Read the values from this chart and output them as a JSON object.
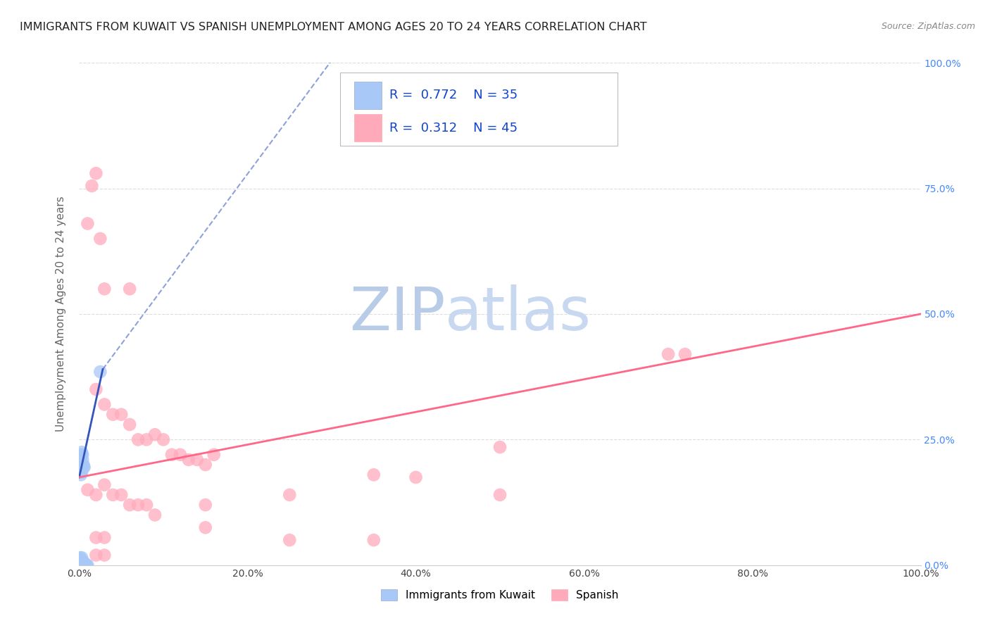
{
  "title": "IMMIGRANTS FROM KUWAIT VS SPANISH UNEMPLOYMENT AMONG AGES 20 TO 24 YEARS CORRELATION CHART",
  "source": "Source: ZipAtlas.com",
  "ylabel": "Unemployment Among Ages 20 to 24 years",
  "xlim": [
    0,
    1.0
  ],
  "ylim": [
    0,
    1.0
  ],
  "xtick_labels": [
    "0.0%",
    "20.0%",
    "40.0%",
    "60.0%",
    "80.0%",
    "100.0%"
  ],
  "xtick_vals": [
    0.0,
    0.2,
    0.4,
    0.6,
    0.8,
    1.0
  ],
  "ytick_labels": [
    "0.0%",
    "25.0%",
    "50.0%",
    "75.0%",
    "100.0%"
  ],
  "ytick_vals": [
    0.0,
    0.25,
    0.5,
    0.75,
    1.0
  ],
  "legend1_label": "Immigrants from Kuwait",
  "legend2_label": "Spanish",
  "R1": "0.772",
  "N1": "35",
  "R2": "0.312",
  "N2": "45",
  "color_kuwait": "#a8c8f8",
  "color_spanish": "#ffaabb",
  "line_color_kuwait": "#3355bb",
  "line_color_spanish": "#ff6688",
  "watermark_zip": "ZIP",
  "watermark_atlas": "atlas",
  "kuwait_points": [
    [
      0.002,
      0.195
    ],
    [
      0.002,
      0.18
    ],
    [
      0.003,
      0.185
    ],
    [
      0.003,
      0.22
    ],
    [
      0.003,
      0.225
    ],
    [
      0.004,
      0.21
    ],
    [
      0.004,
      0.195
    ],
    [
      0.004,
      0.22
    ],
    [
      0.005,
      0.2
    ],
    [
      0.005,
      0.195
    ],
    [
      0.006,
      0.195
    ],
    [
      0.025,
      0.385
    ],
    [
      0.001,
      0.01
    ],
    [
      0.001,
      0.005
    ],
    [
      0.001,
      0.0
    ],
    [
      0.001,
      0.015
    ],
    [
      0.002,
      0.01
    ],
    [
      0.002,
      0.005
    ],
    [
      0.002,
      0.0
    ],
    [
      0.003,
      0.01
    ],
    [
      0.003,
      0.005
    ],
    [
      0.003,
      0.015
    ],
    [
      0.003,
      0.0
    ],
    [
      0.004,
      0.005
    ],
    [
      0.004,
      0.0
    ],
    [
      0.005,
      0.005
    ],
    [
      0.006,
      0.005
    ],
    [
      0.006,
      0.0
    ],
    [
      0.007,
      0.0
    ],
    [
      0.008,
      0.0
    ],
    [
      0.009,
      0.0
    ],
    [
      0.01,
      0.0
    ],
    [
      0.001,
      0.005
    ],
    [
      0.0005,
      0.005
    ],
    [
      0.0005,
      0.0
    ]
  ],
  "spanish_points": [
    [
      0.01,
      0.68
    ],
    [
      0.015,
      0.755
    ],
    [
      0.02,
      0.78
    ],
    [
      0.025,
      0.65
    ],
    [
      0.03,
      0.55
    ],
    [
      0.06,
      0.55
    ],
    [
      0.02,
      0.35
    ],
    [
      0.03,
      0.32
    ],
    [
      0.04,
      0.3
    ],
    [
      0.05,
      0.3
    ],
    [
      0.06,
      0.28
    ],
    [
      0.07,
      0.25
    ],
    [
      0.08,
      0.25
    ],
    [
      0.09,
      0.26
    ],
    [
      0.1,
      0.25
    ],
    [
      0.11,
      0.22
    ],
    [
      0.12,
      0.22
    ],
    [
      0.13,
      0.21
    ],
    [
      0.14,
      0.21
    ],
    [
      0.15,
      0.2
    ],
    [
      0.16,
      0.22
    ],
    [
      0.01,
      0.15
    ],
    [
      0.02,
      0.14
    ],
    [
      0.03,
      0.16
    ],
    [
      0.04,
      0.14
    ],
    [
      0.05,
      0.14
    ],
    [
      0.06,
      0.12
    ],
    [
      0.07,
      0.12
    ],
    [
      0.08,
      0.12
    ],
    [
      0.09,
      0.1
    ],
    [
      0.15,
      0.12
    ],
    [
      0.25,
      0.14
    ],
    [
      0.15,
      0.075
    ],
    [
      0.25,
      0.05
    ],
    [
      0.35,
      0.05
    ],
    [
      0.4,
      0.175
    ],
    [
      0.5,
      0.235
    ],
    [
      0.5,
      0.14
    ],
    [
      0.7,
      0.42
    ],
    [
      0.72,
      0.42
    ],
    [
      0.02,
      0.055
    ],
    [
      0.03,
      0.055
    ],
    [
      0.02,
      0.02
    ],
    [
      0.03,
      0.02
    ],
    [
      0.35,
      0.18
    ]
  ],
  "kuwait_line_solid": [
    [
      0.0,
      0.175
    ],
    [
      0.028,
      0.39
    ]
  ],
  "kuwait_line_dashed": [
    [
      0.028,
      0.39
    ],
    [
      0.32,
      1.05
    ]
  ],
  "spanish_line": [
    [
      0.0,
      0.175
    ],
    [
      1.0,
      0.5
    ]
  ],
  "background_color": "#ffffff",
  "grid_color": "#dddddd",
  "title_color": "#222222",
  "axis_label_color": "#666666",
  "tick_color_x": "#444444",
  "tick_color_y": "#4488ff",
  "title_fontsize": 11.5,
  "source_fontsize": 9,
  "ylabel_fontsize": 11,
  "legend_fontsize": 13,
  "watermark_color_zip": "#b8cce8",
  "watermark_color_atlas": "#c8d8f0",
  "watermark_fontsize": 62
}
